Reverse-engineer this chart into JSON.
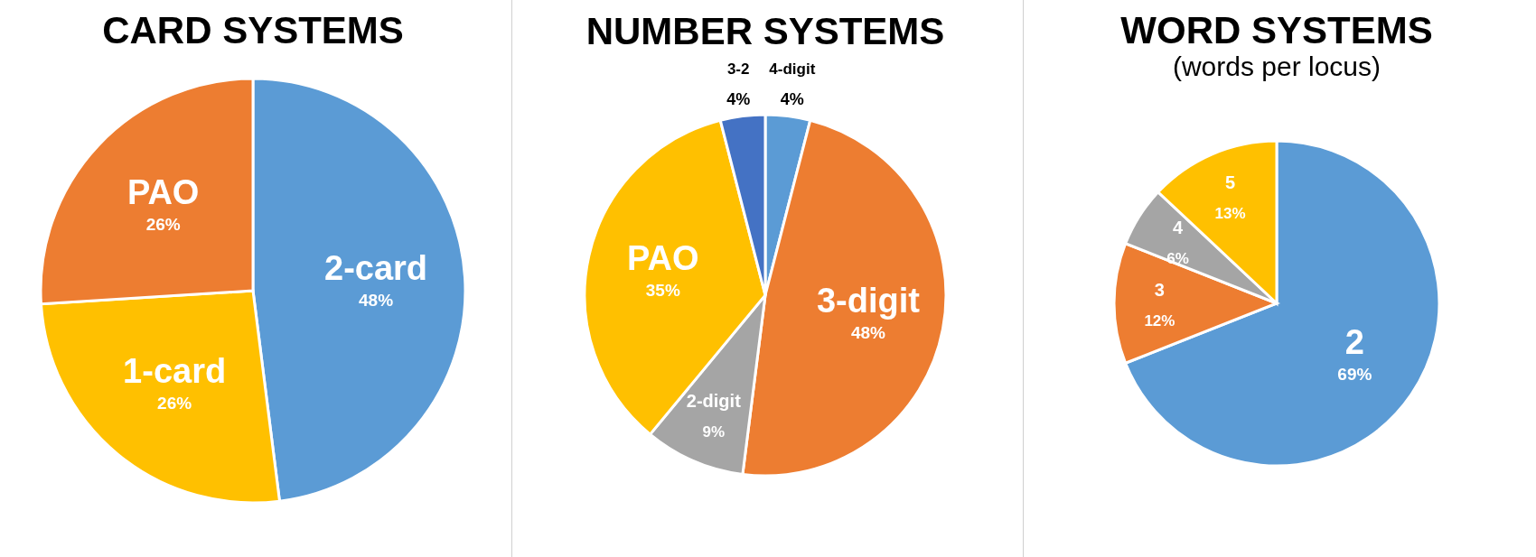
{
  "chart_data": [
    {
      "type": "pie",
      "title": "CARD SYSTEMS",
      "categories": [
        "2-card",
        "1-card",
        "PAO"
      ],
      "values": [
        48,
        26,
        26
      ],
      "colors": [
        "#5b9bd5",
        "#ffc000",
        "#ed7d31"
      ],
      "value_labels": [
        "48%",
        "26%",
        "26%"
      ],
      "legend": false
    },
    {
      "type": "pie",
      "title": "NUMBER SYSTEMS",
      "categories": [
        "4-digit",
        "3-digit",
        "2-digit",
        "PAO",
        "3-2"
      ],
      "values": [
        4,
        48,
        9,
        35,
        4
      ],
      "colors": [
        "#5b9bd5",
        "#ed7d31",
        "#a5a5a5",
        "#ffc000",
        "#4472c4"
      ],
      "value_labels": [
        "4%",
        "48%",
        "9%",
        "35%",
        "4%"
      ],
      "legend": false
    },
    {
      "type": "pie",
      "title": "WORD SYSTEMS",
      "subtitle": "(words per locus)",
      "categories": [
        "2",
        "3",
        "4",
        "5"
      ],
      "values": [
        69,
        12,
        6,
        13
      ],
      "colors": [
        "#5b9bd5",
        "#ed7d31",
        "#a5a5a5",
        "#ffc000"
      ],
      "value_labels": [
        "69%",
        "12%",
        "6%",
        "13%"
      ],
      "legend": false
    }
  ]
}
